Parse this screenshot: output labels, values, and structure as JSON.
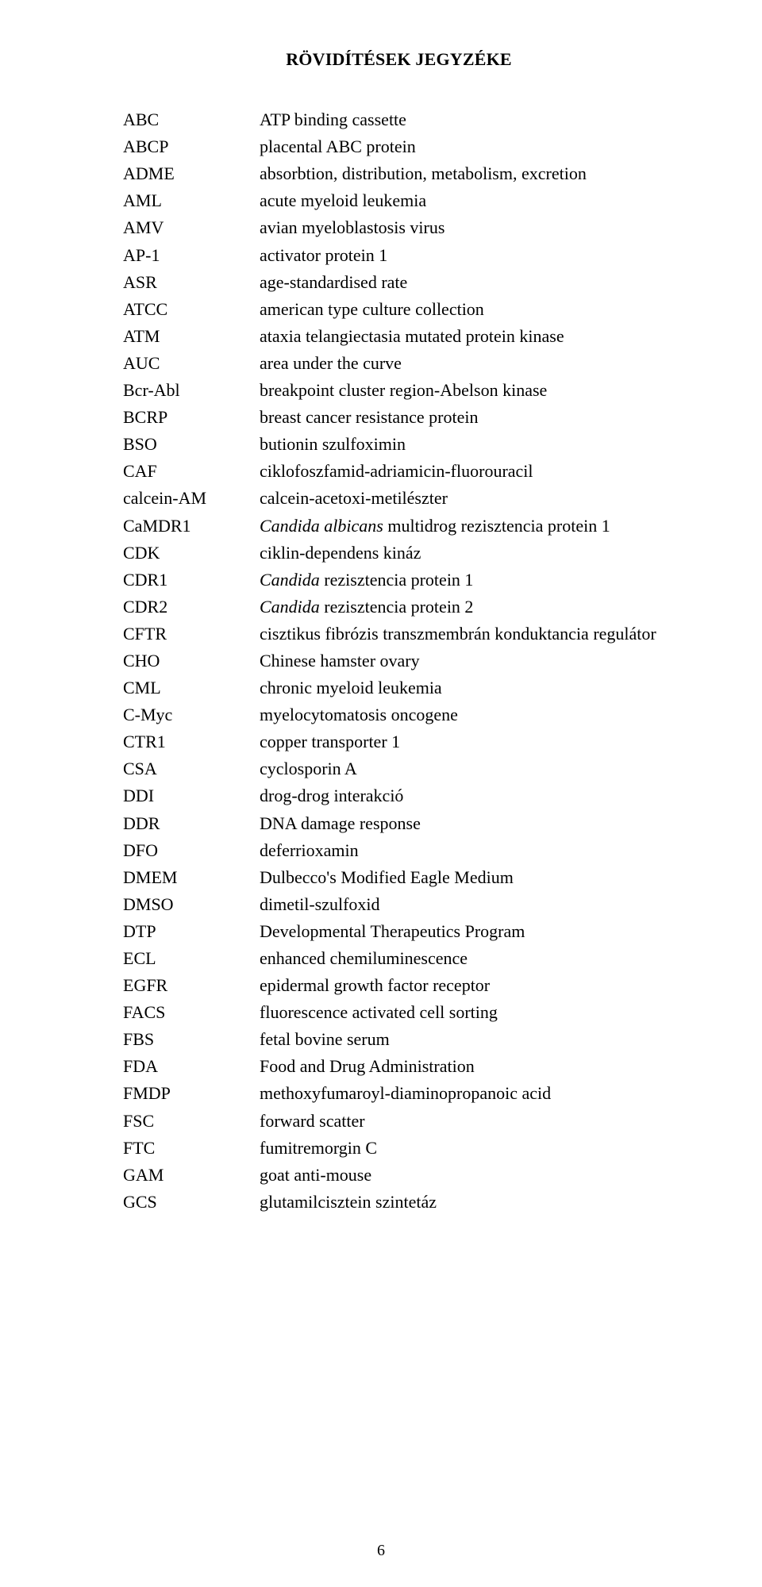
{
  "title": "RÖVIDÍTÉSEK JEGYZÉKE",
  "page_number": "6",
  "entries": [
    {
      "abbr": "ABC",
      "def": "ATP binding cassette"
    },
    {
      "abbr": "ABCP",
      "def": "placental ABC protein"
    },
    {
      "abbr": "ADME",
      "def": "absorbtion, distribution, metabolism, excretion"
    },
    {
      "abbr": "AML",
      "def": "acute myeloid leukemia"
    },
    {
      "abbr": "AMV",
      "def": "avian myeloblastosis virus"
    },
    {
      "abbr": "AP-1",
      "def": "activator protein 1"
    },
    {
      "abbr": "ASR",
      "def": "age-standardised rate"
    },
    {
      "abbr": "ATCC",
      "def": "american type culture collection"
    },
    {
      "abbr": "ATM",
      "def": "ataxia telangiectasia mutated protein kinase"
    },
    {
      "abbr": "AUC",
      "def": "area under the curve"
    },
    {
      "abbr": "Bcr-Abl",
      "def": "breakpoint cluster region-Abelson kinase"
    },
    {
      "abbr": "BCRP",
      "def": "breast cancer resistance protein"
    },
    {
      "abbr": "BSO",
      "def": "butionin szulfoximin"
    },
    {
      "abbr": "CAF",
      "def": "ciklofoszfamid-adriamicin-fluorouracil"
    },
    {
      "abbr": "calcein-AM",
      "def": "calcein-acetoxi-metilészter"
    },
    {
      "abbr": "CaMDR1",
      "def_prefix_italic": "Candida albicans",
      "def_suffix": " multidrog rezisztencia protein 1"
    },
    {
      "abbr": "CDK",
      "def": "ciklin-dependens kináz"
    },
    {
      "abbr": "CDR1",
      "def_prefix_italic": "Candida",
      "def_suffix": " rezisztencia protein 1"
    },
    {
      "abbr": "CDR2",
      "def_prefix_italic": "Candida",
      "def_suffix": " rezisztencia protein 2"
    },
    {
      "abbr": "CFTR",
      "def": "cisztikus fibrózis transzmembrán konduktancia regulátor"
    },
    {
      "abbr": "CHO",
      "def": "Chinese hamster ovary"
    },
    {
      "abbr": "CML",
      "def": "chronic myeloid leukemia"
    },
    {
      "abbr": "C-Myc",
      "def": "myelocytomatosis oncogene"
    },
    {
      "abbr": "CTR1",
      "def": "copper transporter 1"
    },
    {
      "abbr": "CSA",
      "def": "cyclosporin A"
    },
    {
      "abbr": "DDI",
      "def": "drog-drog interakció"
    },
    {
      "abbr": "DDR",
      "def": "DNA damage response"
    },
    {
      "abbr": "DFO",
      "def": " deferrioxamin"
    },
    {
      "abbr": "DMEM",
      "def": "Dulbecco's Modified Eagle Medium"
    },
    {
      "abbr": "DMSO",
      "def": "dimetil-szulfoxid"
    },
    {
      "abbr": "DTP",
      "def": "Developmental Therapeutics Program"
    },
    {
      "abbr": "ECL",
      "def": "enhanced chemiluminescence"
    },
    {
      "abbr": "EGFR",
      "def": "epidermal growth factor receptor"
    },
    {
      "abbr": "FACS",
      "def": "fluorescence activated cell sorting"
    },
    {
      "abbr": "FBS",
      "def": "fetal bovine serum"
    },
    {
      "abbr": "FDA",
      "def": "Food and Drug Administration"
    },
    {
      "abbr": "FMDP",
      "def": "methoxyfumaroyl-diaminopropanoic acid"
    },
    {
      "abbr": "FSC",
      "def": "forward scatter"
    },
    {
      "abbr": "FTC",
      "def": "fumitremorgin C"
    },
    {
      "abbr": "GAM",
      "def": "goat anti-mouse"
    },
    {
      "abbr": "GCS",
      "def": "glutamilcisztein szintetáz"
    }
  ]
}
